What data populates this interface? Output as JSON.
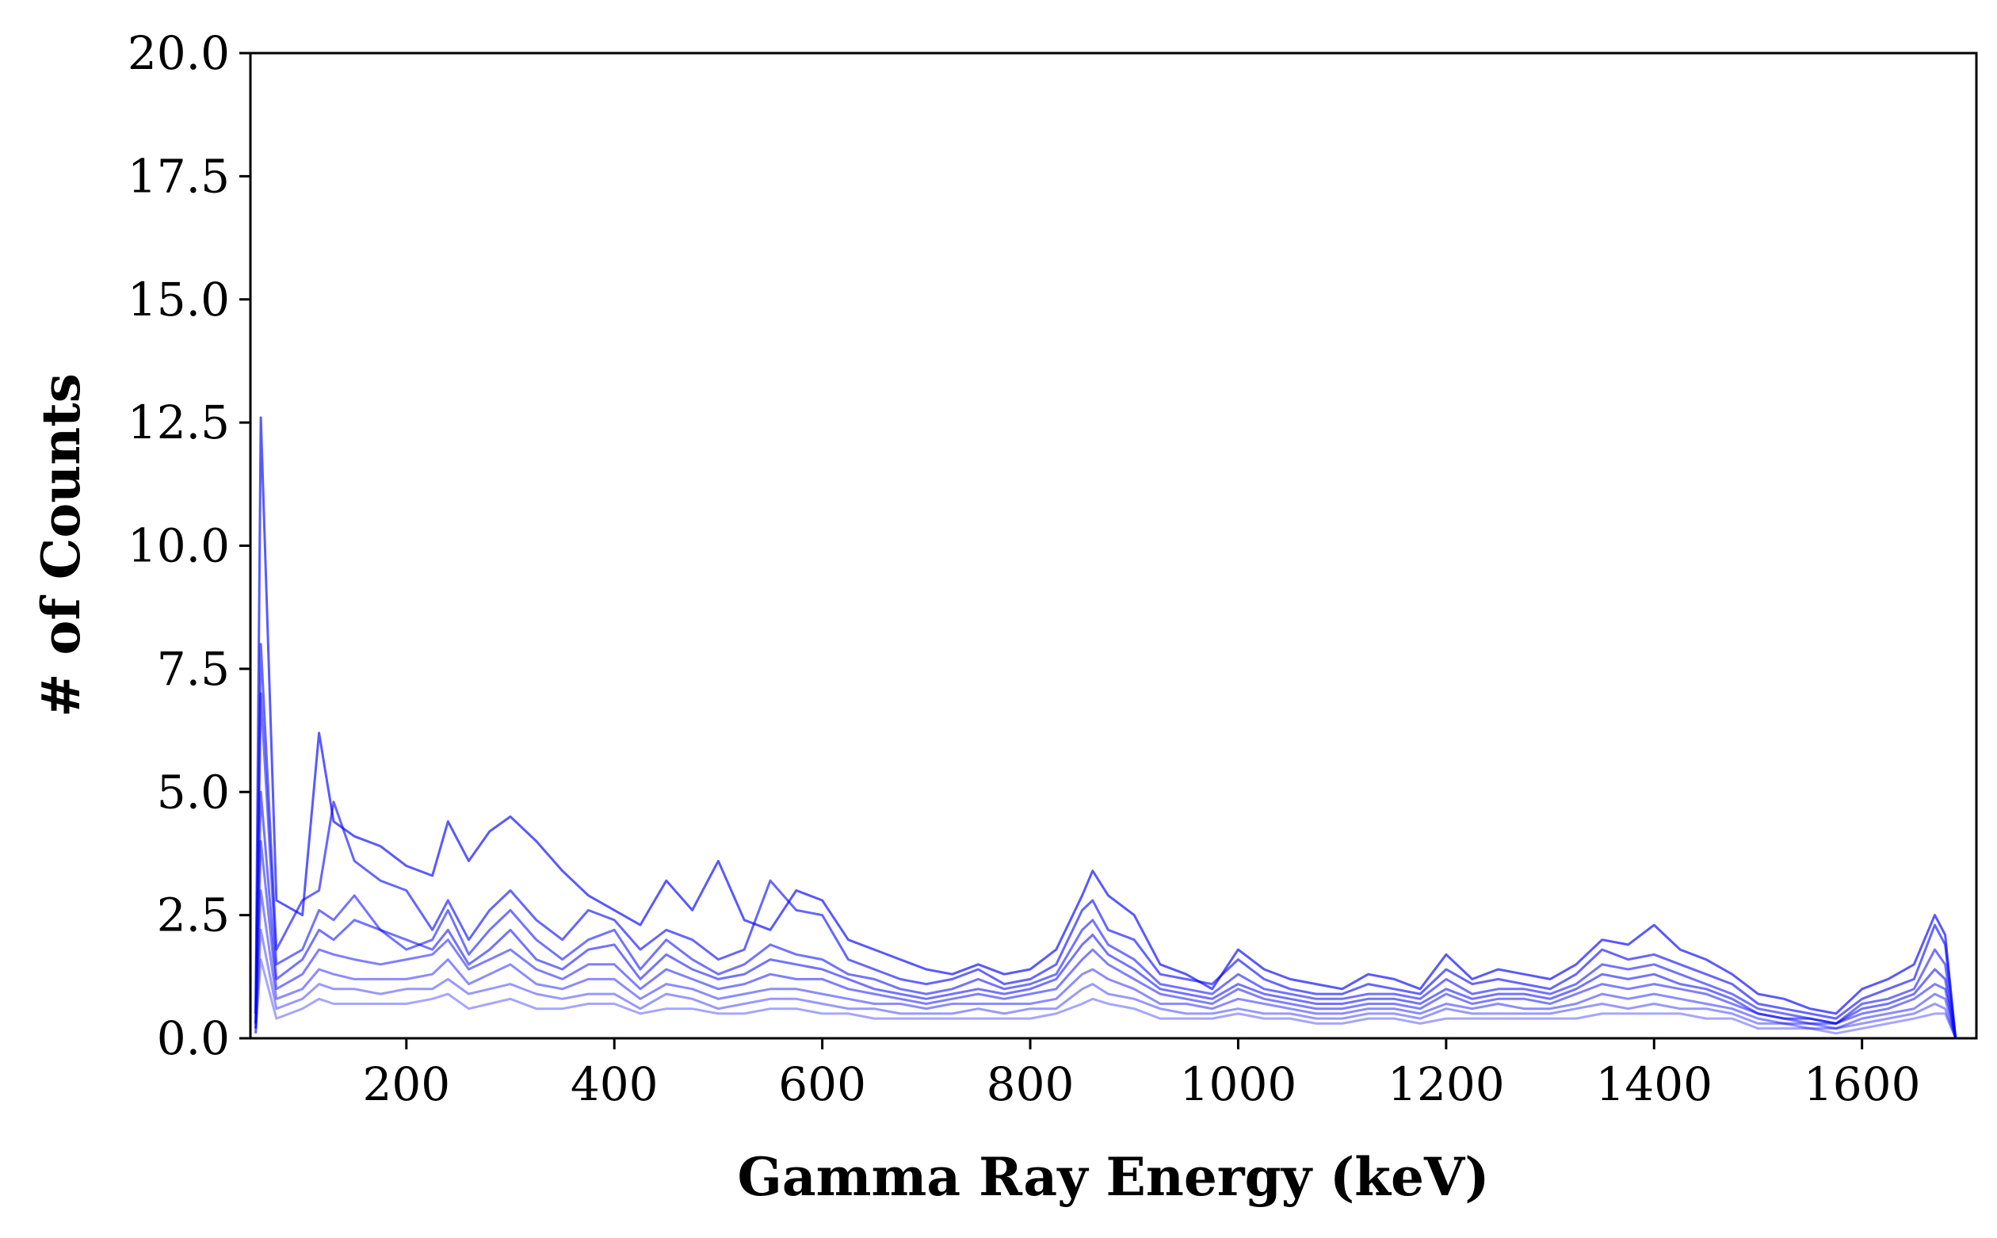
{
  "chart_data": {
    "type": "line",
    "title": "",
    "xlabel": "Gamma Ray Energy (keV)",
    "ylabel": "# of Counts",
    "xlim": [
      50,
      1710
    ],
    "ylim": [
      0,
      20
    ],
    "xticks": [
      200,
      400,
      600,
      800,
      1000,
      1200,
      1400,
      1600
    ],
    "xtick_labels": [
      "200",
      "400",
      "600",
      "800",
      "1000",
      "1200",
      "1400",
      "1600"
    ],
    "yticks": [
      0,
      2.5,
      5,
      7.5,
      10,
      12.5,
      15,
      17.5,
      20
    ],
    "ytick_labels": [
      "0.0",
      "2.5",
      "5.0",
      "7.5",
      "10.0",
      "12.5",
      "15.0",
      "17.5",
      "20.0"
    ],
    "grid": false,
    "legend": "none",
    "line_color": "#0000ff",
    "x": [
      55,
      60,
      75,
      100,
      116,
      130,
      150,
      175,
      200,
      225,
      240,
      260,
      280,
      300,
      325,
      350,
      375,
      400,
      425,
      450,
      475,
      500,
      525,
      550,
      575,
      600,
      625,
      650,
      675,
      700,
      725,
      750,
      775,
      800,
      825,
      850,
      860,
      875,
      900,
      925,
      950,
      975,
      1000,
      1025,
      1050,
      1075,
      1100,
      1125,
      1150,
      1175,
      1200,
      1225,
      1250,
      1275,
      1300,
      1325,
      1350,
      1375,
      1400,
      1425,
      1450,
      1475,
      1500,
      1525,
      1550,
      1575,
      1600,
      1625,
      1650,
      1670,
      1680,
      1690
    ],
    "series": [
      {
        "alpha": 0.65,
        "values": [
          0.5,
          12.6,
          2.8,
          2.5,
          6.2,
          4.4,
          4.1,
          3.9,
          3.5,
          3.3,
          4.4,
          3.6,
          4.2,
          4.5,
          4.0,
          3.4,
          2.9,
          2.6,
          2.3,
          3.2,
          2.6,
          3.6,
          2.4,
          2.2,
          3.0,
          2.8,
          2.0,
          1.8,
          1.6,
          1.4,
          1.3,
          1.5,
          1.3,
          1.4,
          1.8,
          2.9,
          3.4,
          2.9,
          2.5,
          1.5,
          1.3,
          1.0,
          1.8,
          1.4,
          1.2,
          1.1,
          1.0,
          1.3,
          1.2,
          1.0,
          1.7,
          1.2,
          1.4,
          1.3,
          1.2,
          1.5,
          2.0,
          1.9,
          2.3,
          1.8,
          1.6,
          1.3,
          0.9,
          0.8,
          0.6,
          0.5,
          1.0,
          1.2,
          1.5,
          2.5,
          2.1,
          0.0
        ]
      },
      {
        "alpha": 0.6,
        "values": [
          0.5,
          8.0,
          1.8,
          2.8,
          3.0,
          4.8,
          3.6,
          3.2,
          3.0,
          2.2,
          2.8,
          2.0,
          2.6,
          3.0,
          2.4,
          2.0,
          2.6,
          2.4,
          1.8,
          2.2,
          2.0,
          1.6,
          1.8,
          3.2,
          2.6,
          2.5,
          1.6,
          1.4,
          1.2,
          1.1,
          1.2,
          1.4,
          1.1,
          1.2,
          1.5,
          2.6,
          2.8,
          2.2,
          2.0,
          1.3,
          1.2,
          1.1,
          1.6,
          1.2,
          1.0,
          0.9,
          0.9,
          1.1,
          1.0,
          0.9,
          1.4,
          1.1,
          1.2,
          1.1,
          1.0,
          1.3,
          1.8,
          1.6,
          1.7,
          1.5,
          1.3,
          1.1,
          0.7,
          0.6,
          0.5,
          0.4,
          0.8,
          1.0,
          1.2,
          2.3,
          1.9,
          0.0
        ]
      },
      {
        "alpha": 0.55,
        "values": [
          0.3,
          7.0,
          1.5,
          1.8,
          2.6,
          2.4,
          2.9,
          2.2,
          1.8,
          2.0,
          2.6,
          1.7,
          2.2,
          2.6,
          2.0,
          1.6,
          2.0,
          2.2,
          1.4,
          2.0,
          1.6,
          1.3,
          1.5,
          1.9,
          1.7,
          1.6,
          1.3,
          1.2,
          1.0,
          0.9,
          1.0,
          1.2,
          1.0,
          1.1,
          1.3,
          2.2,
          2.4,
          1.9,
          1.6,
          1.1,
          1.0,
          0.9,
          1.3,
          1.0,
          0.9,
          0.8,
          0.8,
          0.9,
          0.9,
          0.8,
          1.2,
          0.9,
          1.0,
          1.0,
          0.9,
          1.1,
          1.5,
          1.4,
          1.5,
          1.3,
          1.1,
          0.9,
          0.6,
          0.5,
          0.4,
          0.3,
          0.7,
          0.8,
          1.0,
          1.8,
          1.5,
          0.0
        ]
      },
      {
        "alpha": 0.55,
        "values": [
          0.3,
          5.0,
          1.2,
          1.6,
          2.2,
          2.0,
          2.4,
          2.2,
          2.0,
          1.8,
          2.2,
          1.5,
          1.8,
          2.2,
          1.6,
          1.4,
          1.8,
          1.9,
          1.2,
          1.7,
          1.4,
          1.2,
          1.3,
          1.6,
          1.5,
          1.4,
          1.2,
          1.0,
          0.9,
          0.8,
          0.9,
          1.0,
          0.9,
          1.0,
          1.2,
          1.9,
          2.1,
          1.7,
          1.4,
          1.0,
          0.9,
          0.8,
          1.1,
          0.9,
          0.8,
          0.7,
          0.7,
          0.8,
          0.8,
          0.7,
          1.0,
          0.8,
          0.9,
          0.9,
          0.8,
          1.0,
          1.3,
          1.2,
          1.3,
          1.1,
          1.0,
          0.8,
          0.5,
          0.4,
          0.4,
          0.3,
          0.6,
          0.7,
          0.9,
          1.4,
          1.2,
          0.0
        ]
      },
      {
        "alpha": 0.5,
        "values": [
          0.2,
          4.0,
          1.0,
          1.3,
          1.8,
          1.7,
          1.6,
          1.5,
          1.6,
          1.7,
          2.0,
          1.4,
          1.6,
          1.8,
          1.4,
          1.2,
          1.5,
          1.5,
          1.0,
          1.4,
          1.2,
          1.0,
          1.1,
          1.3,
          1.2,
          1.2,
          1.0,
          0.9,
          0.8,
          0.7,
          0.8,
          0.9,
          0.8,
          0.9,
          1.0,
          1.6,
          1.8,
          1.5,
          1.2,
          0.9,
          0.8,
          0.7,
          1.0,
          0.8,
          0.7,
          0.6,
          0.6,
          0.7,
          0.7,
          0.6,
          0.9,
          0.7,
          0.8,
          0.8,
          0.7,
          0.9,
          1.1,
          1.0,
          1.1,
          1.0,
          0.9,
          0.7,
          0.5,
          0.4,
          0.3,
          0.3,
          0.5,
          0.6,
          0.8,
          1.1,
          1.0,
          0.0
        ]
      },
      {
        "alpha": 0.45,
        "values": [
          0.2,
          3.0,
          0.8,
          1.0,
          1.4,
          1.3,
          1.2,
          1.2,
          1.2,
          1.3,
          1.6,
          1.1,
          1.3,
          1.5,
          1.1,
          1.0,
          1.2,
          1.2,
          0.8,
          1.1,
          1.0,
          0.8,
          0.9,
          1.0,
          1.0,
          0.9,
          0.8,
          0.7,
          0.7,
          0.6,
          0.7,
          0.7,
          0.7,
          0.7,
          0.8,
          1.3,
          1.4,
          1.2,
          1.0,
          0.7,
          0.7,
          0.6,
          0.8,
          0.7,
          0.6,
          0.5,
          0.5,
          0.6,
          0.6,
          0.5,
          0.7,
          0.6,
          0.7,
          0.6,
          0.6,
          0.7,
          0.9,
          0.8,
          0.9,
          0.8,
          0.7,
          0.6,
          0.4,
          0.3,
          0.3,
          0.2,
          0.4,
          0.5,
          0.6,
          0.9,
          0.8,
          0.0
        ]
      },
      {
        "alpha": 0.4,
        "values": [
          0.1,
          2.2,
          0.6,
          0.8,
          1.1,
          1.0,
          1.0,
          0.9,
          1.0,
          1.0,
          1.2,
          0.9,
          1.0,
          1.1,
          0.9,
          0.8,
          0.9,
          0.9,
          0.6,
          0.9,
          0.8,
          0.6,
          0.7,
          0.8,
          0.8,
          0.7,
          0.6,
          0.6,
          0.5,
          0.5,
          0.5,
          0.6,
          0.5,
          0.6,
          0.6,
          1.0,
          1.1,
          0.9,
          0.8,
          0.6,
          0.5,
          0.5,
          0.6,
          0.5,
          0.5,
          0.4,
          0.4,
          0.5,
          0.5,
          0.4,
          0.6,
          0.5,
          0.5,
          0.5,
          0.5,
          0.6,
          0.7,
          0.6,
          0.7,
          0.6,
          0.6,
          0.5,
          0.3,
          0.3,
          0.2,
          0.2,
          0.3,
          0.4,
          0.5,
          0.7,
          0.6,
          0.0
        ]
      },
      {
        "alpha": 0.35,
        "values": [
          0.1,
          1.6,
          0.4,
          0.6,
          0.8,
          0.7,
          0.7,
          0.7,
          0.7,
          0.8,
          0.9,
          0.6,
          0.7,
          0.8,
          0.6,
          0.6,
          0.7,
          0.7,
          0.5,
          0.6,
          0.6,
          0.5,
          0.5,
          0.6,
          0.6,
          0.5,
          0.5,
          0.4,
          0.4,
          0.4,
          0.4,
          0.4,
          0.4,
          0.4,
          0.5,
          0.7,
          0.8,
          0.7,
          0.6,
          0.4,
          0.4,
          0.4,
          0.5,
          0.4,
          0.4,
          0.3,
          0.3,
          0.4,
          0.4,
          0.3,
          0.4,
          0.4,
          0.4,
          0.4,
          0.4,
          0.4,
          0.5,
          0.5,
          0.5,
          0.5,
          0.4,
          0.4,
          0.2,
          0.2,
          0.2,
          0.1,
          0.2,
          0.3,
          0.4,
          0.5,
          0.5,
          0.0
        ]
      }
    ]
  }
}
